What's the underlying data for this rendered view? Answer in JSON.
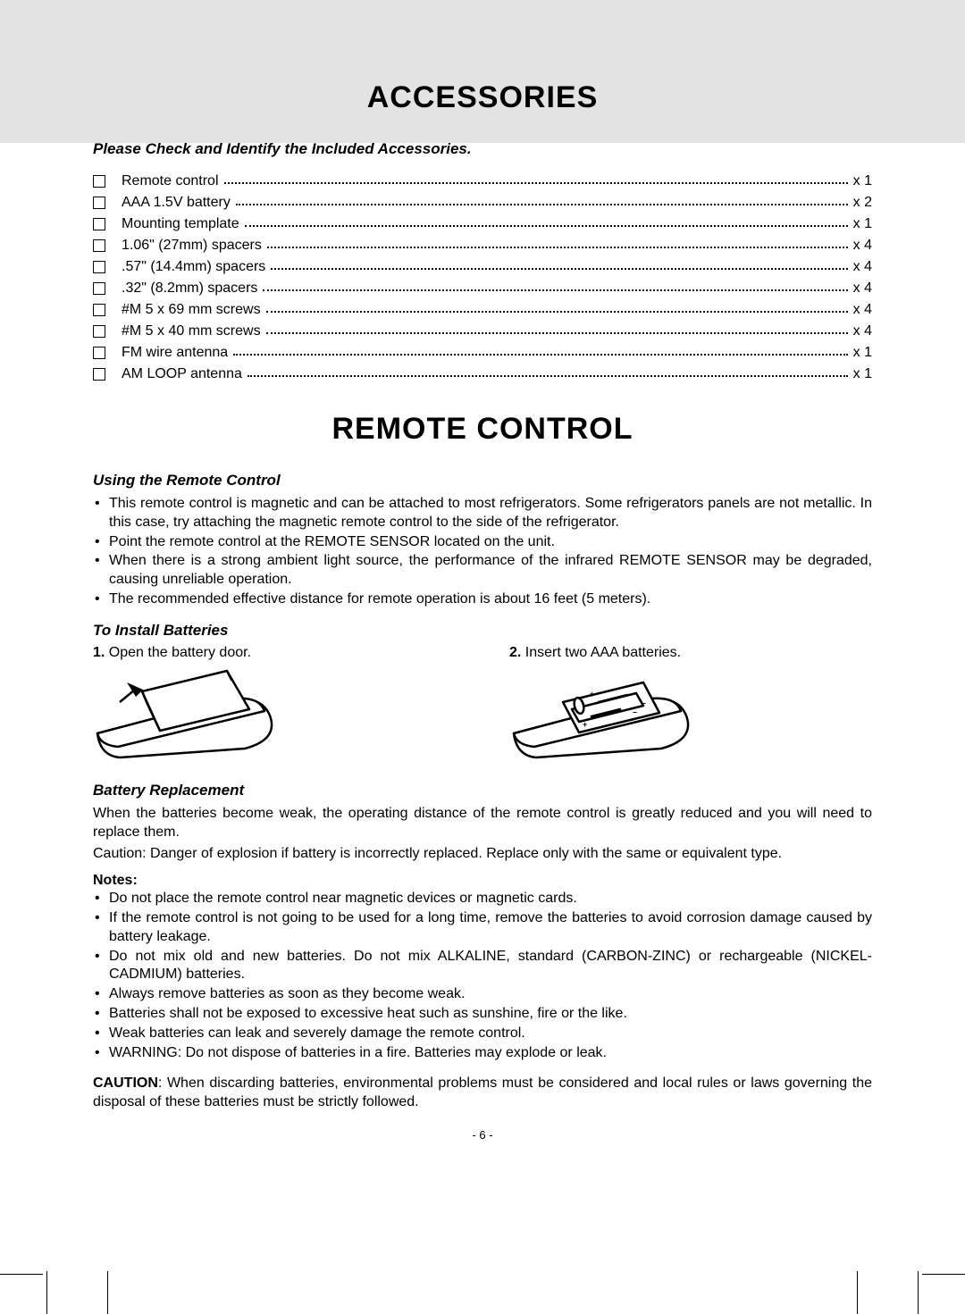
{
  "crop_color": "#000000",
  "band_color": "#e3e3e3",
  "sections": {
    "accessories": {
      "title": "ACCESSORIES",
      "subhead": "Please Check and Identify the Included Accessories.",
      "items": [
        {
          "label": "Remote control",
          "qty": "x 1"
        },
        {
          "label": "AAA 1.5V battery",
          "qty": "x 2"
        },
        {
          "label": "Mounting template",
          "qty": "x 1"
        },
        {
          "label": "1.06\" (27mm) spacers",
          "qty": "x 4"
        },
        {
          "label": ".57\" (14.4mm) spacers",
          "qty": "x 4"
        },
        {
          "label": ".32\" (8.2mm) spacers",
          "qty": "x 4"
        },
        {
          "label": "#M 5 x 69 mm screws",
          "qty": "x 4"
        },
        {
          "label": "#M 5 x 40 mm screws",
          "qty": "x 4"
        },
        {
          "label": "FM wire antenna",
          "qty": "x 1"
        },
        {
          "label": "AM LOOP antenna",
          "qty": "x 1"
        }
      ]
    },
    "remote": {
      "title": "REMOTE CONTROL",
      "using_head": "Using the Remote Control",
      "using": [
        "This remote control is magnetic and can be attached to most refrigerators. Some refrigerators panels are not metallic. In this case, try attaching the magnetic remote control to the side of the refrigerator.",
        "Point the remote control at the REMOTE SENSOR located on the unit.",
        "When there is a strong ambient light source, the performance of the infrared REMOTE SENSOR may be degraded, causing unreliable operation.",
        "The recommended effective distance for remote operation is about 16 feet (5 meters)."
      ],
      "install_head": "To Install Batteries",
      "install_steps": [
        {
          "n": "1.",
          "text": " Open the battery door."
        },
        {
          "n": "2.",
          "text": " Insert two AAA batteries."
        }
      ],
      "battrep_head": "Battery Replacement",
      "battrep_p1": "When the batteries become weak, the operating distance of the remote control is greatly reduced and you will need to replace them.",
      "battrep_p2": "Caution: Danger of explosion if battery is incorrectly replaced. Replace only with the same or equivalent type.",
      "notes_head": "Notes:",
      "notes": [
        "Do not place the remote control near magnetic devices or magnetic cards.",
        "If the remote control is not going to be used for a long time, remove the batteries to avoid corrosion damage caused by battery leakage.",
        "Do not mix old and new batteries. Do not mix ALKALINE, standard (CARBON-ZINC) or rechargeable (NICKEL-CADMIUM) batteries.",
        "Always remove batteries as soon as they become weak.",
        "Batteries shall not be exposed to excessive heat such as sunshine, fire or the like.",
        "Weak batteries can leak and severely damage the remote control.",
        "WARNING: Do not dispose of batteries in a fire. Batteries may explode or leak."
      ],
      "caution_label": "CAUTION",
      "caution_text": ": When discarding batteries, environmental problems must be considered and local rules or laws governing the disposal of these batteries must be strictly followed."
    }
  },
  "page_number": "- 6 -"
}
